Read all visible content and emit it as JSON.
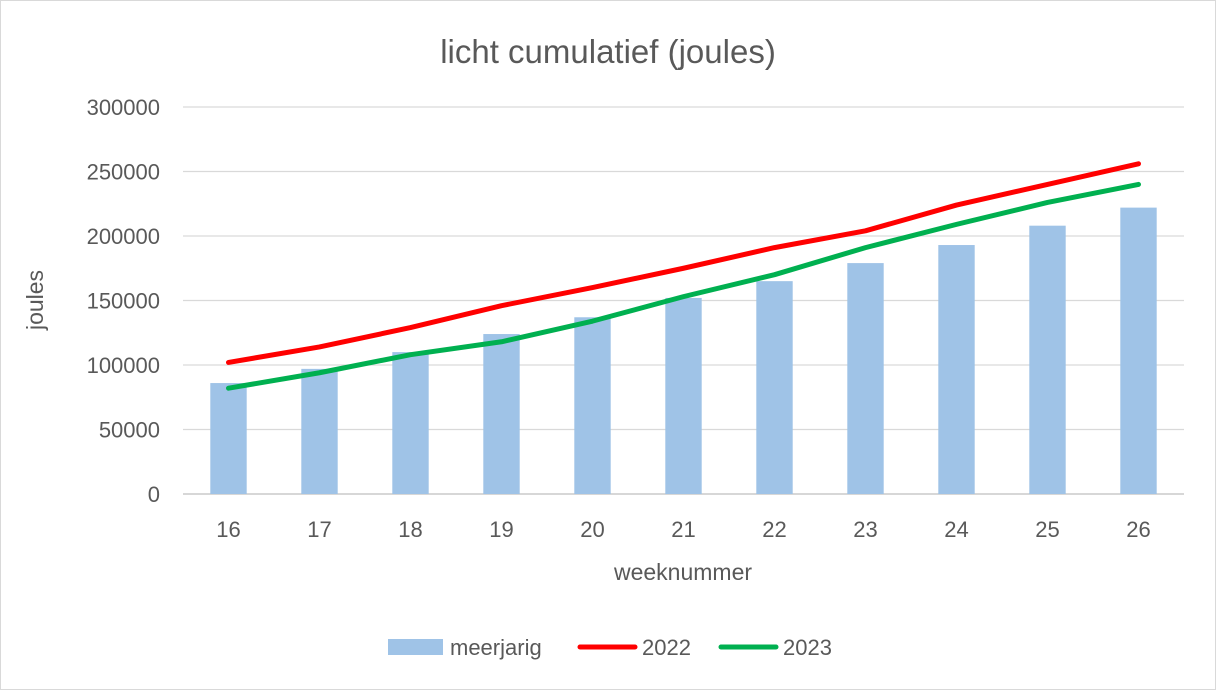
{
  "chart_data": {
    "type": "bar",
    "title": "licht cumulatief (joules)",
    "xlabel": "weeknummer",
    "ylabel": "joules",
    "categories": [
      "16",
      "17",
      "18",
      "19",
      "20",
      "21",
      "22",
      "23",
      "24",
      "25",
      "26"
    ],
    "ylim": [
      0,
      300000
    ],
    "yticks": [
      0,
      50000,
      100000,
      150000,
      200000,
      250000,
      300000
    ],
    "ytick_labels": [
      "0",
      "50000",
      "100000",
      "150000",
      "200000",
      "250000",
      "300000"
    ],
    "grid": true,
    "legend_position": "bottom",
    "series": [
      {
        "name": "meerjarig",
        "type": "bar",
        "color": "#9fc3e7",
        "values": [
          86000,
          97000,
          110000,
          124000,
          137000,
          152000,
          165000,
          179000,
          193000,
          208000,
          222000
        ]
      },
      {
        "name": "2022",
        "type": "line",
        "color": "#ff0000",
        "values": [
          102000,
          114000,
          129000,
          146000,
          160000,
          175000,
          191000,
          204000,
          224000,
          240000,
          256000
        ]
      },
      {
        "name": "2023",
        "type": "line",
        "color": "#00b050",
        "values": [
          82000,
          94000,
          108000,
          118000,
          134000,
          153000,
          170000,
          191000,
          209000,
          226000,
          240000
        ]
      }
    ]
  }
}
